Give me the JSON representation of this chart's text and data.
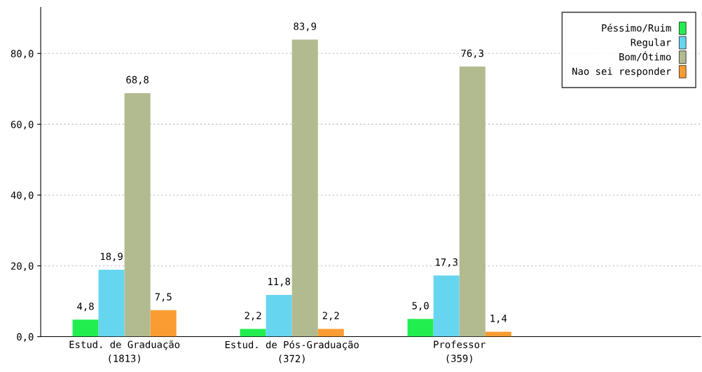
{
  "chart_data": {
    "type": "bar",
    "categories": [
      "Estud. de Graduação\n(1813)",
      "Estud. de Pós-Graduação\n(372)",
      "Professor\n(359)"
    ],
    "series": [
      {
        "name": "Péssimo/Ruim",
        "color": "#22ee4f",
        "values": [
          4.8,
          2.2,
          5.0
        ],
        "value_labels": [
          "4,8",
          "2,2",
          "5,0"
        ]
      },
      {
        "name": "Regular",
        "color": "#66d5f0",
        "values": [
          18.9,
          11.8,
          17.3
        ],
        "value_labels": [
          "18,9",
          "11,8",
          "17,3"
        ]
      },
      {
        "name": "Bom/Ótimo",
        "color": "#b2bb8f",
        "values": [
          68.8,
          83.9,
          76.3
        ],
        "value_labels": [
          "68,8",
          "83,9",
          "76,3"
        ]
      },
      {
        "name": "Nao sei responder",
        "color": "#fb9c32",
        "values": [
          7.5,
          2.2,
          1.4
        ],
        "value_labels": [
          "7,5",
          "2,2",
          "1,4"
        ]
      }
    ],
    "ylim": [
      0,
      93
    ],
    "yticks": [
      {
        "value": 0,
        "label": "0,0"
      },
      {
        "value": 20,
        "label": "20,0"
      },
      {
        "value": 40,
        "label": "40,0"
      },
      {
        "value": 60,
        "label": "60,0"
      },
      {
        "value": 80,
        "label": "80,0"
      }
    ],
    "grid": "y",
    "legend": "top right"
  }
}
